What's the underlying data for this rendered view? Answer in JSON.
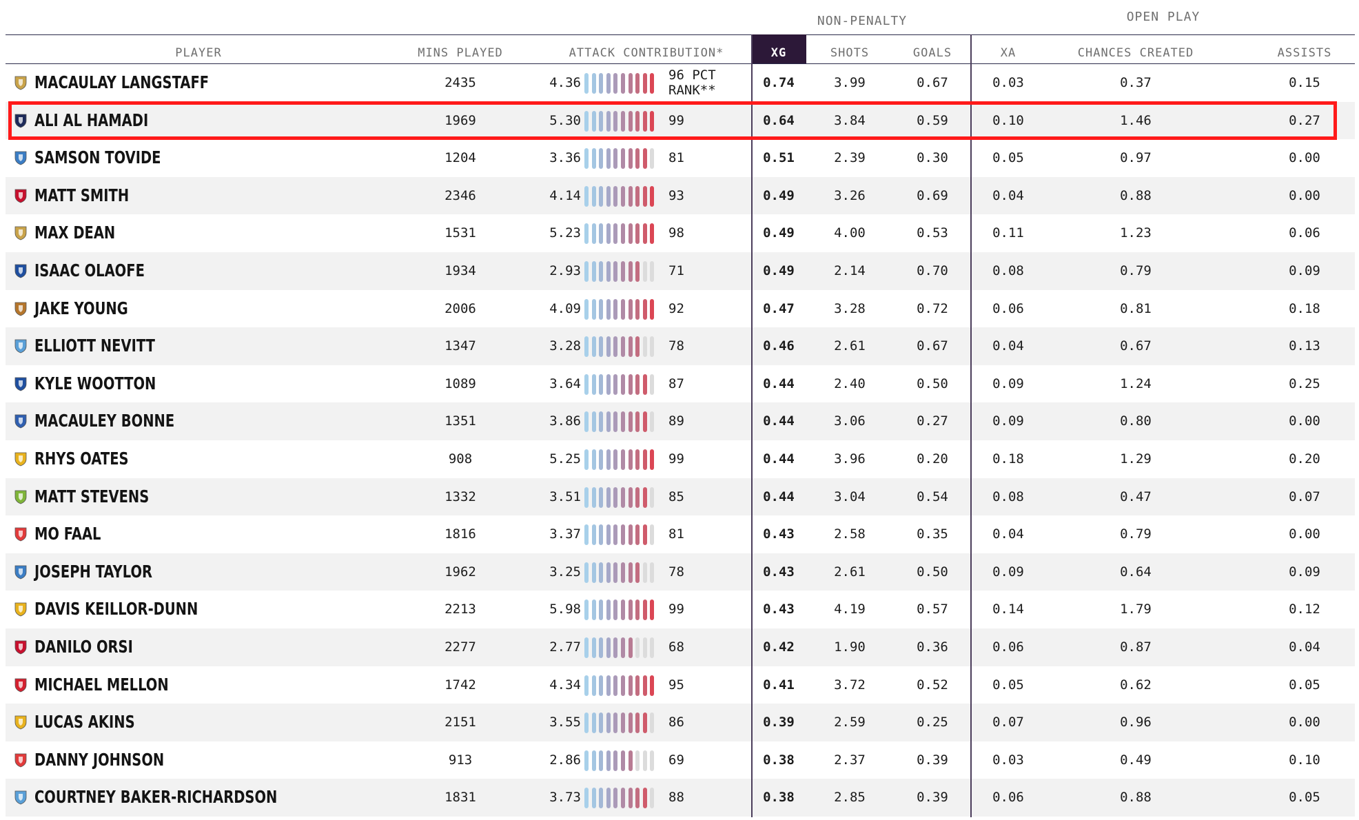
{
  "group_headers": {
    "non_penalty": "NON-PENALTY",
    "open_play": "OPEN PLAY"
  },
  "headers": {
    "player": "PLAYER",
    "mins": "MINS PLAYED",
    "attack": "ATTACK CONTRIBUTION*",
    "xg": "XG",
    "shots": "SHOTS",
    "goals": "GOALS",
    "xa": "XA",
    "chances": "CHANCES CREATED",
    "assists": "ASSISTS"
  },
  "pct_rank_label": "PCT\nRANK**",
  "colors": {
    "bar_palette": [
      "#a8d0ea",
      "#a4c6e2",
      "#a3b8d6",
      "#a6a8c8",
      "#ab9ab8",
      "#b08aa6",
      "#b87b93",
      "#c36d80",
      "#cf5b6b",
      "#db4654"
    ],
    "bar_empty": "#dcdcdc",
    "highlight": "#ff1a1a",
    "xg_header_bg": "#2c1838"
  },
  "highlighted_player": "ALI AL HAMADI",
  "players": [
    {
      "name": "MACAULAY LANGSTAFF",
      "badge_icon": "notts-county-crest-icon",
      "badge_color": "#c9a34a",
      "mins": "2435",
      "ac": "4.36",
      "pct": "96",
      "xg": "0.74",
      "shots": "3.99",
      "goals": "0.67",
      "xa": "0.03",
      "chances": "0.37",
      "assists": "0.15"
    },
    {
      "name": "ALI AL HAMADI",
      "badge_icon": "afc-wimbledon-crest-icon",
      "badge_color": "#1d2a5a",
      "mins": "1969",
      "ac": "5.30",
      "pct": "99",
      "xg": "0.64",
      "shots": "3.84",
      "goals": "0.59",
      "xa": "0.10",
      "chances": "1.46",
      "assists": "0.27"
    },
    {
      "name": "SAMSON TOVIDE",
      "badge_icon": "colchester-crest-icon",
      "badge_color": "#3b7dc4",
      "mins": "1204",
      "ac": "3.36",
      "pct": "81",
      "xg": "0.51",
      "shots": "2.39",
      "goals": "0.30",
      "xa": "0.05",
      "chances": "0.97",
      "assists": "0.00"
    },
    {
      "name": "MATT SMITH",
      "badge_icon": "salford-crest-icon",
      "badge_color": "#c8102e",
      "mins": "2346",
      "ac": "4.14",
      "pct": "93",
      "xg": "0.49",
      "shots": "3.26",
      "goals": "0.69",
      "xa": "0.04",
      "chances": "0.88",
      "assists": "0.00"
    },
    {
      "name": "MAX DEAN",
      "badge_icon": "mk-dons-crest-icon",
      "badge_color": "#c9a34a",
      "mins": "1531",
      "ac": "5.23",
      "pct": "98",
      "xg": "0.49",
      "shots": "4.00",
      "goals": "0.53",
      "xa": "0.11",
      "chances": "1.23",
      "assists": "0.06"
    },
    {
      "name": "ISAAC OLAOFE",
      "badge_icon": "stockport-crest-icon",
      "badge_color": "#1f4fa0",
      "mins": "1934",
      "ac": "2.93",
      "pct": "71",
      "xg": "0.49",
      "shots": "2.14",
      "goals": "0.70",
      "xa": "0.08",
      "chances": "0.79",
      "assists": "0.09"
    },
    {
      "name": "JAKE YOUNG",
      "badge_icon": "bradford-crest-icon",
      "badge_color": "#b5762c",
      "mins": "2006",
      "ac": "4.09",
      "pct": "92",
      "xg": "0.47",
      "shots": "3.28",
      "goals": "0.72",
      "xa": "0.06",
      "chances": "0.81",
      "assists": "0.18"
    },
    {
      "name": "ELLIOTT NEVITT",
      "badge_icon": "tranmere-crest-icon",
      "badge_color": "#5aa0d8",
      "mins": "1347",
      "ac": "3.28",
      "pct": "78",
      "xg": "0.46",
      "shots": "2.61",
      "goals": "0.67",
      "xa": "0.04",
      "chances": "0.67",
      "assists": "0.13"
    },
    {
      "name": "KYLE WOOTTON",
      "badge_icon": "stockport-crest-icon",
      "badge_color": "#1f4fa0",
      "mins": "1089",
      "ac": "3.64",
      "pct": "87",
      "xg": "0.44",
      "shots": "2.40",
      "goals": "0.50",
      "xa": "0.09",
      "chances": "1.24",
      "assists": "0.25"
    },
    {
      "name": "MACAULEY BONNE",
      "badge_icon": "gillingham-crest-icon",
      "badge_color": "#2f5fb0",
      "mins": "1351",
      "ac": "3.86",
      "pct": "89",
      "xg": "0.44",
      "shots": "3.06",
      "goals": "0.27",
      "xa": "0.09",
      "chances": "0.80",
      "assists": "0.00"
    },
    {
      "name": "RHYS OATES",
      "badge_icon": "mansfield-crest-icon",
      "badge_color": "#e8b21e",
      "mins": "908",
      "ac": "5.25",
      "pct": "99",
      "xg": "0.44",
      "shots": "3.96",
      "goals": "0.20",
      "xa": "0.18",
      "chances": "1.29",
      "assists": "0.20"
    },
    {
      "name": "MATT STEVENS",
      "badge_icon": "forest-green-crest-icon",
      "badge_color": "#7fb539",
      "mins": "1332",
      "ac": "3.51",
      "pct": "85",
      "xg": "0.44",
      "shots": "3.04",
      "goals": "0.54",
      "xa": "0.08",
      "chances": "0.47",
      "assists": "0.07"
    },
    {
      "name": "MO FAAL",
      "badge_icon": "walsall-crest-icon",
      "badge_color": "#e23b3b",
      "mins": "1816",
      "ac": "3.37",
      "pct": "81",
      "xg": "0.43",
      "shots": "2.58",
      "goals": "0.35",
      "xa": "0.04",
      "chances": "0.79",
      "assists": "0.00"
    },
    {
      "name": "JOSEPH TAYLOR",
      "badge_icon": "colchester-crest-icon",
      "badge_color": "#3b7dc4",
      "mins": "1962",
      "ac": "3.25",
      "pct": "78",
      "xg": "0.43",
      "shots": "2.61",
      "goals": "0.50",
      "xa": "0.09",
      "chances": "0.64",
      "assists": "0.09"
    },
    {
      "name": "DAVIS KEILLOR-DUNN",
      "badge_icon": "mansfield-crest-icon",
      "badge_color": "#e8b21e",
      "mins": "2213",
      "ac": "5.98",
      "pct": "99",
      "xg": "0.43",
      "shots": "4.19",
      "goals": "0.57",
      "xa": "0.14",
      "chances": "1.79",
      "assists": "0.12"
    },
    {
      "name": "DANILO ORSI",
      "badge_icon": "crawley-crest-icon",
      "badge_color": "#c8102e",
      "mins": "2277",
      "ac": "2.77",
      "pct": "68",
      "xg": "0.42",
      "shots": "1.90",
      "goals": "0.36",
      "xa": "0.06",
      "chances": "0.87",
      "assists": "0.04"
    },
    {
      "name": "MICHAEL MELLON",
      "badge_icon": "morecambe-crest-icon",
      "badge_color": "#d4202f",
      "mins": "1742",
      "ac": "4.34",
      "pct": "95",
      "xg": "0.41",
      "shots": "3.72",
      "goals": "0.52",
      "xa": "0.05",
      "chances": "0.62",
      "assists": "0.05"
    },
    {
      "name": "LUCAS AKINS",
      "badge_icon": "mansfield-crest-icon",
      "badge_color": "#e8b21e",
      "mins": "2151",
      "ac": "3.55",
      "pct": "86",
      "xg": "0.39",
      "shots": "2.59",
      "goals": "0.25",
      "xa": "0.07",
      "chances": "0.96",
      "assists": "0.00"
    },
    {
      "name": "DANNY JOHNSON",
      "badge_icon": "walsall-crest-icon",
      "badge_color": "#e23b3b",
      "mins": "913",
      "ac": "2.86",
      "pct": "69",
      "xg": "0.38",
      "shots": "2.37",
      "goals": "0.39",
      "xa": "0.03",
      "chances": "0.49",
      "assists": "0.10"
    },
    {
      "name": "COURTNEY BAKER-RICHARDSON",
      "badge_icon": "tranmere-crest-icon",
      "badge_color": "#5aa0d8",
      "mins": "1831",
      "ac": "3.73",
      "pct": "88",
      "xg": "0.38",
      "shots": "2.85",
      "goals": "0.39",
      "xa": "0.06",
      "chances": "0.88",
      "assists": "0.05"
    }
  ]
}
